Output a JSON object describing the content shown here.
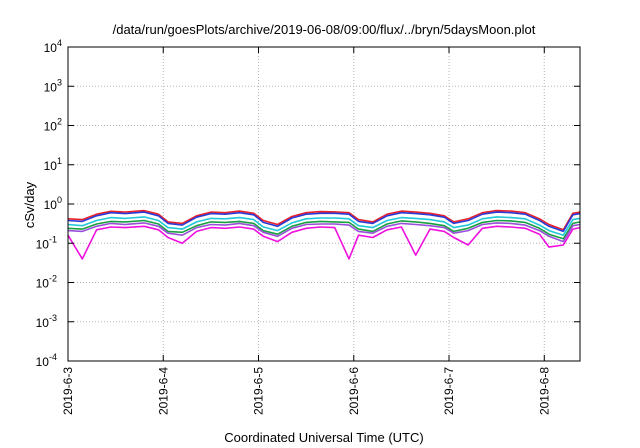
{
  "chart_data": {
    "type": "line",
    "title": "/data/run/goesPlots/archive/2019-06-08/09:00/flux/../bryn/5daysMoon.plot",
    "xlabel": "Coordinated Universal Time (UTC)",
    "ylabel": "cSv/day",
    "yscale": "log",
    "ylim": [
      0.0001,
      10000
    ],
    "y_ticks": [
      {
        "base": "10",
        "exp": "4",
        "value": 10000
      },
      {
        "base": "10",
        "exp": "3",
        "value": 1000
      },
      {
        "base": "10",
        "exp": "2",
        "value": 100
      },
      {
        "base": "10",
        "exp": "1",
        "value": 10
      },
      {
        "base": "10",
        "exp": "0",
        "value": 1
      },
      {
        "base": "10",
        "exp": "-1",
        "value": 0.1
      },
      {
        "base": "10",
        "exp": "-2",
        "value": 0.01
      },
      {
        "base": "10",
        "exp": "-3",
        "value": 0.001
      },
      {
        "base": "10",
        "exp": "-4",
        "value": 0.0001
      }
    ],
    "xlim": [
      "2019-06-03",
      "2019-06-08 09:00"
    ],
    "x_ticks": [
      "2019-6-3",
      "2019-6-4",
      "2019-6-5",
      "2019-6-6",
      "2019-6-7",
      "2019-6-8"
    ],
    "grid": true,
    "x_days": [
      0,
      0.15,
      0.3,
      0.45,
      0.6,
      0.8,
      0.95,
      1.05,
      1.2,
      1.35,
      1.5,
      1.65,
      1.8,
      1.95,
      2.05,
      2.2,
      2.35,
      2.5,
      2.65,
      2.8,
      2.95,
      3.05,
      3.2,
      3.35,
      3.5,
      3.65,
      3.8,
      3.95,
      4.05,
      4.2,
      4.35,
      4.5,
      4.65,
      4.8,
      4.95,
      5.05,
      5.2,
      5.3,
      5.375
    ],
    "series": [
      {
        "color": "#e8202a",
        "values": [
          0.42,
          0.4,
          0.55,
          0.65,
          0.62,
          0.68,
          0.55,
          0.35,
          0.32,
          0.5,
          0.62,
          0.6,
          0.66,
          0.58,
          0.38,
          0.3,
          0.48,
          0.6,
          0.64,
          0.63,
          0.6,
          0.4,
          0.35,
          0.55,
          0.66,
          0.62,
          0.58,
          0.5,
          0.35,
          0.42,
          0.6,
          0.68,
          0.66,
          0.6,
          0.42,
          0.3,
          0.22,
          0.58,
          0.62
        ]
      },
      {
        "color": "#2a3ad8",
        "values": [
          0.38,
          0.36,
          0.5,
          0.6,
          0.57,
          0.62,
          0.5,
          0.32,
          0.29,
          0.46,
          0.57,
          0.55,
          0.6,
          0.53,
          0.34,
          0.27,
          0.44,
          0.55,
          0.58,
          0.58,
          0.55,
          0.36,
          0.32,
          0.5,
          0.6,
          0.57,
          0.53,
          0.46,
          0.32,
          0.38,
          0.55,
          0.62,
          0.6,
          0.55,
          0.38,
          0.27,
          0.2,
          0.53,
          0.57
        ]
      },
      {
        "color": "#20c8d8",
        "values": [
          0.3,
          0.28,
          0.38,
          0.45,
          0.43,
          0.47,
          0.38,
          0.25,
          0.23,
          0.35,
          0.43,
          0.42,
          0.45,
          0.4,
          0.26,
          0.21,
          0.33,
          0.42,
          0.44,
          0.44,
          0.42,
          0.28,
          0.25,
          0.38,
          0.45,
          0.43,
          0.4,
          0.35,
          0.25,
          0.29,
          0.42,
          0.47,
          0.45,
          0.42,
          0.29,
          0.21,
          0.16,
          0.4,
          0.43
        ]
      },
      {
        "color": "#1aa040",
        "values": [
          0.24,
          0.23,
          0.31,
          0.36,
          0.35,
          0.38,
          0.31,
          0.2,
          0.19,
          0.28,
          0.35,
          0.34,
          0.36,
          0.32,
          0.21,
          0.17,
          0.27,
          0.34,
          0.36,
          0.35,
          0.34,
          0.23,
          0.2,
          0.31,
          0.37,
          0.35,
          0.32,
          0.28,
          0.2,
          0.24,
          0.34,
          0.38,
          0.37,
          0.34,
          0.24,
          0.17,
          0.13,
          0.32,
          0.35
        ]
      },
      {
        "color": "#9a4fd8",
        "values": [
          0.21,
          0.2,
          0.27,
          0.32,
          0.3,
          0.33,
          0.27,
          0.18,
          0.16,
          0.25,
          0.3,
          0.29,
          0.32,
          0.28,
          0.19,
          0.15,
          0.24,
          0.3,
          0.31,
          0.31,
          0.29,
          0.2,
          0.18,
          0.27,
          0.32,
          0.3,
          0.28,
          0.25,
          0.18,
          0.21,
          0.3,
          0.33,
          0.32,
          0.29,
          0.21,
          0.15,
          0.11,
          0.28,
          0.3
        ]
      },
      {
        "color": "#f010e0",
        "values": [
          0.16,
          0.04,
          0.22,
          0.26,
          0.25,
          0.27,
          0.22,
          0.14,
          0.1,
          0.2,
          0.25,
          0.24,
          0.26,
          0.23,
          0.15,
          0.11,
          0.19,
          0.24,
          0.26,
          0.25,
          0.04,
          0.16,
          0.14,
          0.22,
          0.26,
          0.05,
          0.23,
          0.2,
          0.14,
          0.09,
          0.24,
          0.27,
          0.26,
          0.24,
          0.17,
          0.08,
          0.09,
          0.23,
          0.25
        ]
      }
    ]
  }
}
